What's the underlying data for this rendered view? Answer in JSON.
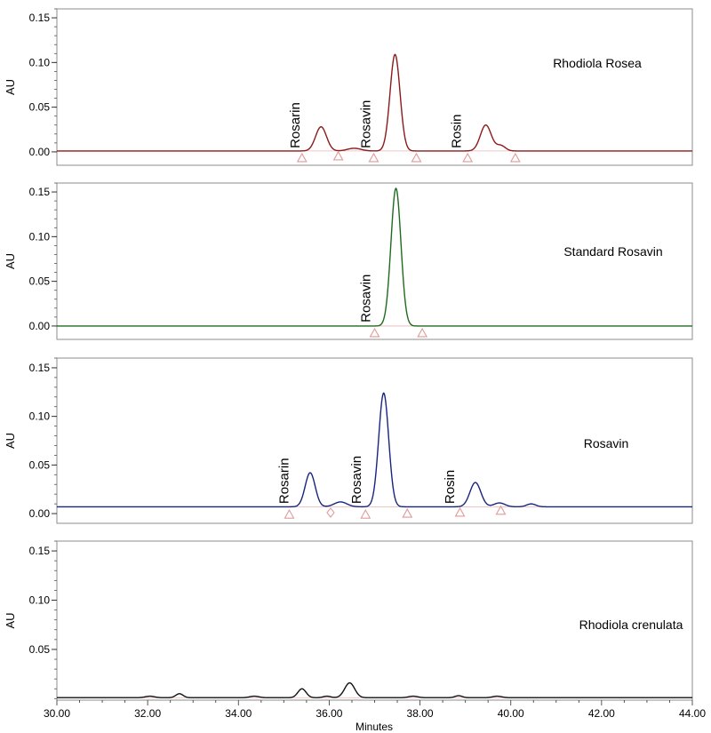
{
  "figure": {
    "x_axis": {
      "label": "Minutes",
      "range": [
        30,
        44
      ],
      "ticks": [
        30,
        32,
        34,
        36,
        38,
        40,
        42,
        44
      ],
      "tick_labels": [
        "30.00",
        "32.00",
        "34.00",
        "36.00",
        "38.00",
        "40.00",
        "42.00",
        "44.00"
      ]
    }
  },
  "chart_data": [
    {
      "type": "line",
      "title": "Rhodiola Rosea",
      "ylabel": "AU",
      "xlabel": "",
      "xlim": [
        30,
        44
      ],
      "ylim": [
        -0.015,
        0.16
      ],
      "yticks": [
        0.0,
        0.05,
        0.1,
        0.15
      ],
      "ytick_labels": [
        "0.00",
        "0.05",
        "0.10",
        "0.15"
      ],
      "grid": false,
      "color": "#8b1a1a",
      "baseline": 0.001,
      "peaks": [
        {
          "x": 35.82,
          "h": 0.027,
          "w": 0.12
        },
        {
          "x": 36.55,
          "h": 0.003,
          "w": 0.15
        },
        {
          "x": 37.45,
          "h": 0.108,
          "w": 0.11
        },
        {
          "x": 39.45,
          "h": 0.029,
          "w": 0.12
        },
        {
          "x": 39.78,
          "h": 0.006,
          "w": 0.1
        }
      ],
      "peak_labels": [
        {
          "text": "Rosarin",
          "x": 35.35,
          "y": 0.004
        },
        {
          "text": "Rosavin",
          "x": 36.9,
          "y": 0.004
        },
        {
          "text": "Rosin",
          "x": 38.9,
          "y": 0.004
        }
      ],
      "markers": [
        {
          "x": 35.4,
          "y": -0.007,
          "shape": "triangle"
        },
        {
          "x": 36.2,
          "y": -0.005,
          "shape": "triangle"
        },
        {
          "x": 36.98,
          "y": -0.007,
          "shape": "triangle"
        },
        {
          "x": 37.92,
          "y": -0.007,
          "shape": "triangle"
        },
        {
          "x": 39.05,
          "y": -0.007,
          "shape": "triangle"
        },
        {
          "x": 40.1,
          "y": -0.007,
          "shape": "triangle"
        }
      ]
    },
    {
      "type": "line",
      "title": "Standard Rosavin",
      "ylabel": "AU",
      "xlabel": "",
      "xlim": [
        30,
        44
      ],
      "ylim": [
        -0.015,
        0.16
      ],
      "yticks": [
        0.0,
        0.05,
        0.1,
        0.15
      ],
      "ytick_labels": [
        "0.00",
        "0.05",
        "0.10",
        "0.15"
      ],
      "grid": false,
      "color": "#1e6b1e",
      "baseline": 0.0,
      "peaks": [
        {
          "x": 37.47,
          "h": 0.154,
          "w": 0.11
        }
      ],
      "peak_labels": [
        {
          "text": "Rosavin",
          "x": 36.9,
          "y": 0.004
        }
      ],
      "markers": [
        {
          "x": 37.0,
          "y": -0.008,
          "shape": "triangle"
        },
        {
          "x": 38.05,
          "y": -0.008,
          "shape": "triangle"
        }
      ]
    },
    {
      "type": "line",
      "title": "Rosavin",
      "ylabel": "AU",
      "xlabel": "",
      "xlim": [
        30,
        44
      ],
      "ylim": [
        -0.01,
        0.16
      ],
      "yticks": [
        0.0,
        0.05,
        0.1,
        0.15
      ],
      "ytick_labels": [
        "0.00",
        "0.05",
        "0.10",
        "0.15"
      ],
      "grid": false,
      "color": "#1a237e",
      "baseline": 0.007,
      "peaks": [
        {
          "x": 35.58,
          "h": 0.035,
          "w": 0.11
        },
        {
          "x": 36.25,
          "h": 0.005,
          "w": 0.14
        },
        {
          "x": 37.2,
          "h": 0.117,
          "w": 0.11
        },
        {
          "x": 39.22,
          "h": 0.025,
          "w": 0.12
        },
        {
          "x": 39.75,
          "h": 0.004,
          "w": 0.12
        },
        {
          "x": 40.45,
          "h": 0.003,
          "w": 0.1
        }
      ],
      "peak_labels": [
        {
          "text": "Rosarin",
          "x": 35.1,
          "y": 0.01
        },
        {
          "text": "Rosavin",
          "x": 36.7,
          "y": 0.01
        },
        {
          "text": "Rosin",
          "x": 38.75,
          "y": 0.01
        }
      ],
      "markers": [
        {
          "x": 35.12,
          "y": -0.001,
          "shape": "triangle"
        },
        {
          "x": 36.03,
          "y": 0.001,
          "shape": "diamond"
        },
        {
          "x": 36.8,
          "y": -0.001,
          "shape": "triangle"
        },
        {
          "x": 37.72,
          "y": 0.0,
          "shape": "triangle"
        },
        {
          "x": 38.88,
          "y": 0.001,
          "shape": "triangle"
        },
        {
          "x": 39.78,
          "y": 0.003,
          "shape": "triangle"
        }
      ]
    },
    {
      "type": "line",
      "title": "Rhodiola crenulata",
      "ylabel": "AU",
      "xlabel": "Minutes",
      "xlim": [
        30,
        44
      ],
      "ylim": [
        -0.0015,
        0.16
      ],
      "yticks": [
        0.05,
        0.1,
        0.15
      ],
      "ytick_labels": [
        "0.05",
        "0.10",
        "0.15"
      ],
      "grid": false,
      "color": "#111111",
      "baseline": 0.001,
      "peaks": [
        {
          "x": 32.05,
          "h": 0.0015,
          "w": 0.1
        },
        {
          "x": 32.7,
          "h": 0.004,
          "w": 0.08
        },
        {
          "x": 34.35,
          "h": 0.0015,
          "w": 0.1
        },
        {
          "x": 35.4,
          "h": 0.009,
          "w": 0.09
        },
        {
          "x": 35.95,
          "h": 0.0015,
          "w": 0.08
        },
        {
          "x": 36.45,
          "h": 0.015,
          "w": 0.11
        },
        {
          "x": 37.85,
          "h": 0.0015,
          "w": 0.1
        },
        {
          "x": 38.85,
          "h": 0.002,
          "w": 0.08
        },
        {
          "x": 39.7,
          "h": 0.0015,
          "w": 0.1
        }
      ],
      "peak_labels": [],
      "markers": []
    }
  ]
}
